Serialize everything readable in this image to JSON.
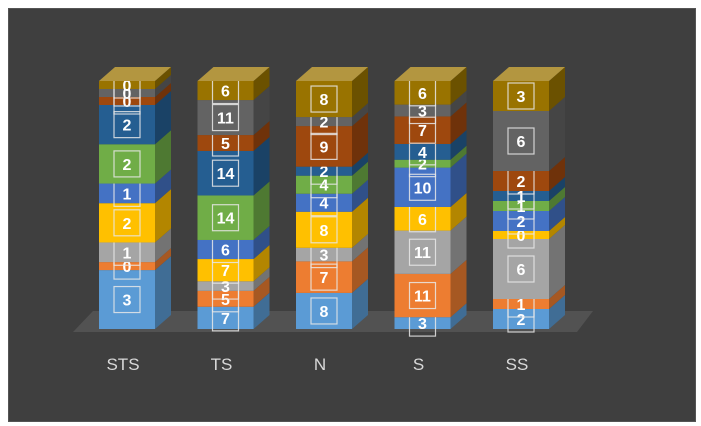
{
  "chart_data": {
    "type": "bar",
    "stacked": true,
    "three_d": true,
    "legend": "none",
    "grid": false,
    "categories": [
      "STS",
      "TS",
      "N",
      "S",
      "SS"
    ],
    "stacks": [
      [
        {
          "value": 3,
          "color": "#5b9bd5"
        },
        {
          "value": 0,
          "color": "#ed7d31"
        },
        {
          "value": 1,
          "color": "#a5a5a5"
        },
        {
          "value": 2,
          "color": "#ffc000"
        },
        {
          "value": 1,
          "color": "#4472c4"
        },
        {
          "value": 2,
          "color": "#70ad47"
        },
        {
          "value": 2,
          "color": "#255e91"
        },
        {
          "value": 0,
          "color": "#9e480e"
        },
        {
          "value": 0,
          "color": "#636363"
        },
        {
          "value": 0,
          "color": "#997300"
        }
      ],
      [
        {
          "value": 7,
          "color": "#5b9bd5"
        },
        {
          "value": 5,
          "color": "#ed7d31"
        },
        {
          "value": 3,
          "color": "#a5a5a5"
        },
        {
          "value": 7,
          "color": "#ffc000"
        },
        {
          "value": 6,
          "color": "#4472c4"
        },
        {
          "value": 14,
          "color": "#70ad47"
        },
        {
          "value": 14,
          "color": "#255e91"
        },
        {
          "value": 5,
          "color": "#9e480e"
        },
        {
          "value": 11,
          "color": "#636363"
        },
        {
          "value": 6,
          "color": "#997300"
        }
      ],
      [
        {
          "value": 8,
          "color": "#5b9bd5"
        },
        {
          "value": 7,
          "color": "#ed7d31"
        },
        {
          "value": 3,
          "color": "#a5a5a5"
        },
        {
          "value": 8,
          "color": "#ffc000"
        },
        {
          "value": 4,
          "color": "#4472c4"
        },
        {
          "value": 4,
          "color": "#70ad47"
        },
        {
          "value": 2,
          "color": "#255e91"
        },
        {
          "value": 9,
          "color": "#9e480e"
        },
        {
          "value": 2,
          "color": "#636363"
        },
        {
          "value": 8,
          "color": "#997300"
        }
      ],
      [
        {
          "value": 3,
          "color": "#5b9bd5"
        },
        {
          "value": 11,
          "color": "#ed7d31"
        },
        {
          "value": 11,
          "color": "#a5a5a5"
        },
        {
          "value": 6,
          "color": "#ffc000"
        },
        {
          "value": 10,
          "color": "#4472c4"
        },
        {
          "value": 2,
          "color": "#70ad47"
        },
        {
          "value": 4,
          "color": "#255e91"
        },
        {
          "value": 7,
          "color": "#9e480e"
        },
        {
          "value": 3,
          "color": "#636363"
        },
        {
          "value": 6,
          "color": "#997300"
        }
      ],
      [
        {
          "value": 2,
          "color": "#5b9bd5"
        },
        {
          "value": 1,
          "color": "#ed7d31"
        },
        {
          "value": 6,
          "color": "#a5a5a5"
        },
        {
          "value": 0,
          "color": "#ffc000"
        },
        {
          "value": 2,
          "color": "#4472c4"
        },
        {
          "value": 1,
          "color": "#70ad47"
        },
        {
          "value": 1,
          "color": "#255e91"
        },
        {
          "value": 2,
          "color": "#9e480e"
        },
        {
          "value": 6,
          "color": "#636363"
        },
        {
          "value": 3,
          "color": "#997300"
        }
      ]
    ],
    "background": "#3f3f3f"
  }
}
